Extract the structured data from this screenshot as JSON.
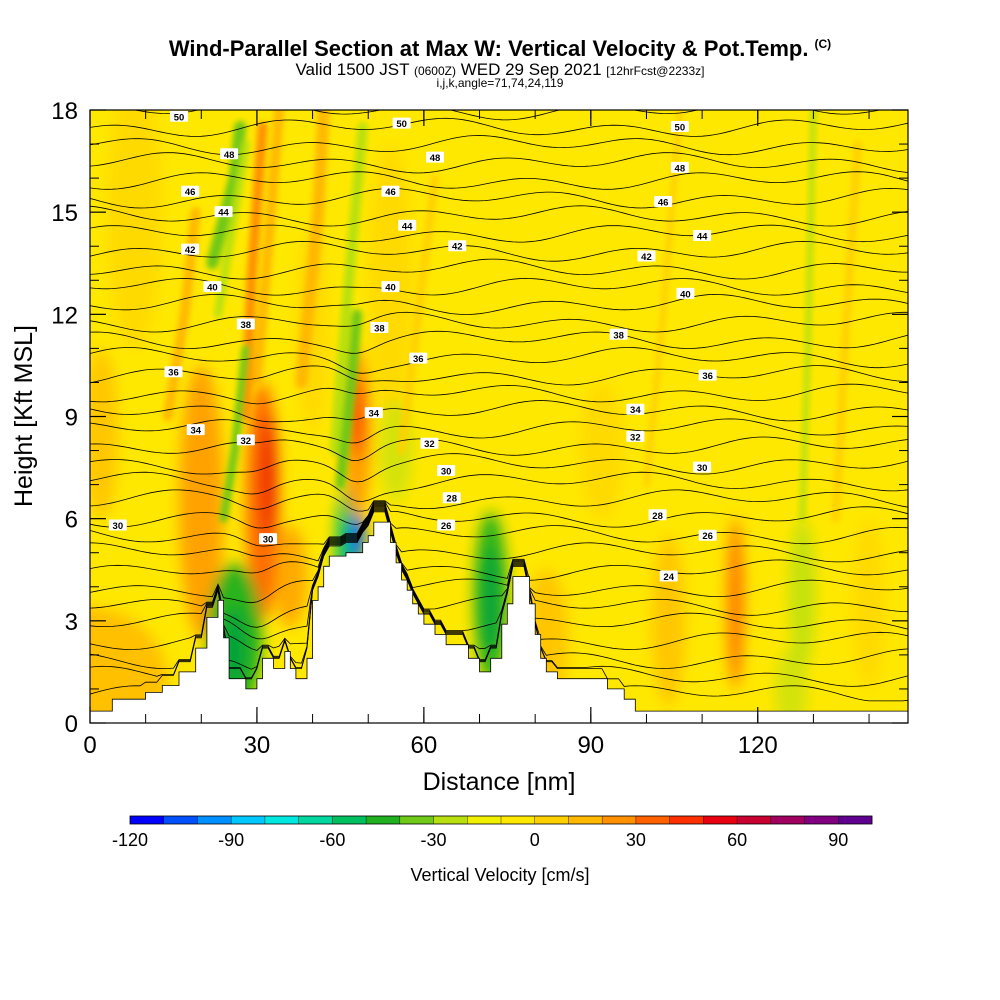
{
  "chart_data": {
    "type": "heatmap",
    "title": "Wind-Parallel Section at Max W: Vertical Velocity & Pot.Temp.",
    "copyright": "(C)",
    "subtitle_prefix": "Valid 1500 JST",
    "subtitle_zulu": "(0600Z)",
    "subtitle_date": "WED 29 Sep 2021",
    "subtitle_fcst": "[12hrFcst@2233z]",
    "subtitle2": "i,j,k,angle=71,74,24,119",
    "xlabel": "Distance [nm]",
    "ylabel": "Height [Kft MSL]",
    "xlim": [
      0,
      147
    ],
    "ylim": [
      0,
      18
    ],
    "xticks": [
      0,
      30,
      60,
      90,
      120
    ],
    "yticks": [
      0,
      3,
      6,
      9,
      12,
      15,
      18
    ],
    "colorbar": {
      "label": "Vertical Velocity [cm/s]",
      "ticks": [
        -120,
        -90,
        -60,
        -30,
        0,
        30,
        60,
        90
      ],
      "range": [
        -120,
        100
      ],
      "colors": [
        "#0000ff",
        "#0050ff",
        "#0090ff",
        "#00c8ff",
        "#00e8e0",
        "#00d8a0",
        "#00c060",
        "#20b020",
        "#70c818",
        "#b8e010",
        "#f0f000",
        "#ffe800",
        "#ffd000",
        "#ffb800",
        "#ff9000",
        "#ff6000",
        "#ff3000",
        "#e80010",
        "#c80030",
        "#a00060",
        "#800080",
        "#600090"
      ]
    },
    "terrain": [
      [
        0,
        0.35
      ],
      [
        4,
        0.35
      ],
      [
        4,
        0.7
      ],
      [
        10,
        0.7
      ],
      [
        10,
        0.9
      ],
      [
        13,
        0.9
      ],
      [
        13,
        1.1
      ],
      [
        16,
        1.1
      ],
      [
        16,
        1.5
      ],
      [
        19,
        1.5
      ],
      [
        19,
        2.2
      ],
      [
        21,
        2.2
      ],
      [
        21,
        3.1
      ],
      [
        23,
        3.1
      ],
      [
        23,
        3.6
      ],
      [
        24,
        3.6
      ],
      [
        24,
        2.5
      ],
      [
        25,
        2.5
      ],
      [
        25,
        1.3
      ],
      [
        28,
        1.3
      ],
      [
        28,
        1.0
      ],
      [
        30,
        1.0
      ],
      [
        30,
        1.3
      ],
      [
        31,
        1.3
      ],
      [
        31,
        1.9
      ],
      [
        33,
        1.9
      ],
      [
        33,
        1.6
      ],
      [
        35,
        1.6
      ],
      [
        35,
        2.1
      ],
      [
        36,
        2.1
      ],
      [
        36,
        1.6
      ],
      [
        37,
        1.6
      ],
      [
        37,
        1.3
      ],
      [
        39,
        1.3
      ],
      [
        39,
        1.9
      ],
      [
        40,
        1.9
      ],
      [
        40,
        3.6
      ],
      [
        41,
        3.6
      ],
      [
        41,
        4.0
      ],
      [
        42,
        4.0
      ],
      [
        42,
        4.6
      ],
      [
        43,
        4.6
      ],
      [
        43,
        4.9
      ],
      [
        46,
        4.9
      ],
      [
        46,
        5.0
      ],
      [
        49,
        5.0
      ],
      [
        49,
        5.3
      ],
      [
        50,
        5.3
      ],
      [
        50,
        5.5
      ],
      [
        51,
        5.5
      ],
      [
        51,
        5.9
      ],
      [
        54,
        5.9
      ],
      [
        54,
        5.3
      ],
      [
        55,
        5.3
      ],
      [
        55,
        4.7
      ],
      [
        56,
        4.7
      ],
      [
        56,
        4.2
      ],
      [
        57,
        4.2
      ],
      [
        57,
        3.9
      ],
      [
        58,
        3.9
      ],
      [
        58,
        3.5
      ],
      [
        59,
        3.5
      ],
      [
        59,
        3.2
      ],
      [
        60,
        3.2
      ],
      [
        60,
        2.9
      ],
      [
        62,
        2.9
      ],
      [
        62,
        2.6
      ],
      [
        64,
        2.6
      ],
      [
        64,
        2.3
      ],
      [
        68,
        2.3
      ],
      [
        68,
        1.9
      ],
      [
        70,
        1.9
      ],
      [
        70,
        1.5
      ],
      [
        72,
        1.5
      ],
      [
        72,
        1.9
      ],
      [
        74,
        1.9
      ],
      [
        74,
        2.9
      ],
      [
        75,
        2.9
      ],
      [
        75,
        3.5
      ],
      [
        76,
        3.5
      ],
      [
        76,
        4.3
      ],
      [
        79,
        4.3
      ],
      [
        79,
        3.5
      ],
      [
        80,
        3.5
      ],
      [
        80,
        2.6
      ],
      [
        81,
        2.6
      ],
      [
        81,
        1.9
      ],
      [
        82,
        1.9
      ],
      [
        82,
        1.5
      ],
      [
        84,
        1.5
      ],
      [
        84,
        1.3
      ],
      [
        93,
        1.3
      ],
      [
        93,
        1.0
      ],
      [
        96,
        1.0
      ],
      [
        96,
        0.7
      ],
      [
        98,
        0.7
      ],
      [
        98,
        0.35
      ],
      [
        147,
        0.35
      ]
    ],
    "theta_labels": [
      {
        "x": 16,
        "y": 17.8,
        "v": "50"
      },
      {
        "x": 56,
        "y": 17.6,
        "v": "50"
      },
      {
        "x": 106,
        "y": 17.5,
        "v": "50"
      },
      {
        "x": 25,
        "y": 16.7,
        "v": "48"
      },
      {
        "x": 62,
        "y": 16.6,
        "v": "48"
      },
      {
        "x": 106,
        "y": 16.3,
        "v": "48"
      },
      {
        "x": 18,
        "y": 15.6,
        "v": "46"
      },
      {
        "x": 54,
        "y": 15.6,
        "v": "46"
      },
      {
        "x": 103,
        "y": 15.3,
        "v": "46"
      },
      {
        "x": 24,
        "y": 15.0,
        "v": "44"
      },
      {
        "x": 57,
        "y": 14.6,
        "v": "44"
      },
      {
        "x": 110,
        "y": 14.3,
        "v": "44"
      },
      {
        "x": 18,
        "y": 13.9,
        "v": "42"
      },
      {
        "x": 66,
        "y": 14.0,
        "v": "42"
      },
      {
        "x": 100,
        "y": 13.7,
        "v": "42"
      },
      {
        "x": 22,
        "y": 12.8,
        "v": "40"
      },
      {
        "x": 54,
        "y": 12.8,
        "v": "40"
      },
      {
        "x": 107,
        "y": 12.6,
        "v": "40"
      },
      {
        "x": 28,
        "y": 11.7,
        "v": "38"
      },
      {
        "x": 52,
        "y": 11.6,
        "v": "38"
      },
      {
        "x": 95,
        "y": 11.4,
        "v": "38"
      },
      {
        "x": 15,
        "y": 10.3,
        "v": "36"
      },
      {
        "x": 59,
        "y": 10.7,
        "v": "36"
      },
      {
        "x": 111,
        "y": 10.2,
        "v": "36"
      },
      {
        "x": 19,
        "y": 8.6,
        "v": "34"
      },
      {
        "x": 51,
        "y": 9.1,
        "v": "34"
      },
      {
        "x": 98,
        "y": 9.2,
        "v": "34"
      },
      {
        "x": 28,
        "y": 8.3,
        "v": "32"
      },
      {
        "x": 61,
        "y": 8.2,
        "v": "32"
      },
      {
        "x": 98,
        "y": 8.4,
        "v": "32"
      },
      {
        "x": 5,
        "y": 5.8,
        "v": "30"
      },
      {
        "x": 32,
        "y": 5.4,
        "v": "30"
      },
      {
        "x": 64,
        "y": 7.4,
        "v": "30"
      },
      {
        "x": 110,
        "y": 7.5,
        "v": "30"
      },
      {
        "x": 65,
        "y": 6.6,
        "v": "28"
      },
      {
        "x": 102,
        "y": 6.1,
        "v": "28"
      },
      {
        "x": 64,
        "y": 5.8,
        "v": "26"
      },
      {
        "x": 111,
        "y": 5.5,
        "v": "26"
      },
      {
        "x": 104,
        "y": 4.3,
        "v": "24"
      }
    ]
  }
}
